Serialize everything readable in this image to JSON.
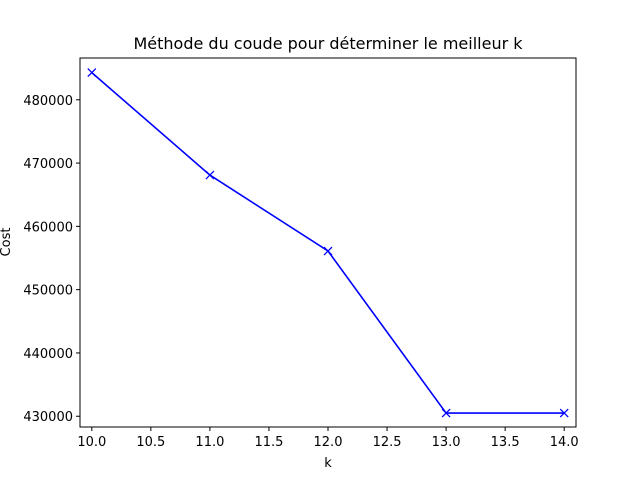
{
  "chart_data": {
    "type": "line",
    "title": "Méthode du coude pour déterminer le meilleur k",
    "xlabel": "k",
    "ylabel": "Cost",
    "series": [
      {
        "x": [
          10,
          11,
          12,
          13,
          14
        ],
        "values": [
          484300,
          468100,
          456100,
          430500,
          430500
        ],
        "color": "#0000ff",
        "marker": "x"
      }
    ],
    "xlim": [
      9.9,
      14.1
    ],
    "ylim": [
      428300,
      486600
    ],
    "xticks": [
      10.0,
      10.5,
      11.0,
      11.5,
      12.0,
      12.5,
      13.0,
      13.5,
      14.0
    ],
    "xtick_labels": [
      "10.0",
      "10.5",
      "11.0",
      "11.5",
      "12.0",
      "12.5",
      "13.0",
      "13.5",
      "14.0"
    ],
    "yticks": [
      430000,
      440000,
      450000,
      460000,
      470000,
      480000
    ],
    "ytick_labels": [
      "430000",
      "440000",
      "450000",
      "460000",
      "470000",
      "480000"
    ],
    "grid": false,
    "legend": false
  }
}
